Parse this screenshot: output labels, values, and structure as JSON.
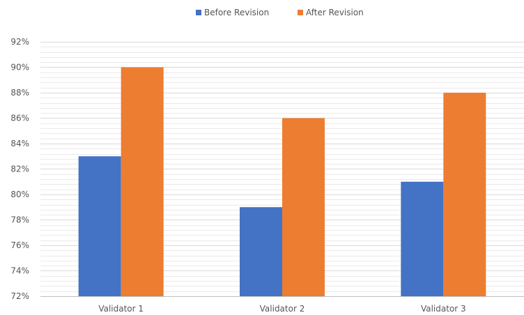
{
  "chart_data": {
    "type": "bar",
    "title": "",
    "xlabel": "",
    "ylabel": "",
    "categories": [
      "Validator 1",
      "Validator 2",
      "Validator 3"
    ],
    "series": [
      {
        "name": "Before Revision",
        "values": [
          83,
          79,
          81
        ],
        "color": "#4472c4"
      },
      {
        "name": "After Revision",
        "values": [
          90,
          86,
          88
        ],
        "color": "#ed7d31"
      }
    ],
    "ylim": [
      72,
      92
    ],
    "ytick_step": 2,
    "ytick_labels": [
      "72%",
      "74%",
      "76%",
      "78%",
      "80%",
      "82%",
      "84%",
      "86%",
      "88%",
      "90%",
      "92%"
    ],
    "minor_gridlines": true,
    "legend_position": "top",
    "grid_color": "#d9d9d9"
  }
}
